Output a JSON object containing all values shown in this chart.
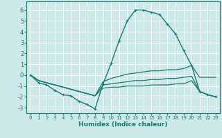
{
  "xlabel": "Humidex (Indice chaleur)",
  "xlim": [
    -0.5,
    23.5
  ],
  "ylim": [
    -3.5,
    6.8
  ],
  "yticks": [
    -3,
    -2,
    -1,
    0,
    1,
    2,
    3,
    4,
    5,
    6
  ],
  "xticks": [
    0,
    1,
    2,
    3,
    4,
    5,
    6,
    7,
    8,
    9,
    10,
    11,
    12,
    13,
    14,
    15,
    16,
    17,
    18,
    19,
    20,
    21,
    22,
    23
  ],
  "bg_color": "#cce8e8",
  "grid_color": "#ffffff",
  "line_color": "#1a7a6e",
  "series": [
    {
      "x": [
        0,
        1,
        2,
        3,
        4,
        5,
        6,
        7,
        8,
        9,
        10,
        11,
        12,
        13,
        14,
        15,
        16,
        17,
        18,
        19,
        20,
        21,
        22,
        23
      ],
      "y": [
        0.0,
        -0.7,
        -0.9,
        -1.4,
        -1.8,
        -1.9,
        -2.4,
        -2.7,
        -3.1,
        -0.8,
        1.1,
        3.2,
        5.0,
        6.0,
        6.0,
        5.8,
        5.6,
        4.7,
        3.8,
        2.3,
        0.9,
        -1.5,
        -1.8,
        -2.0
      ],
      "marker": true
    },
    {
      "x": [
        0,
        1,
        2,
        3,
        4,
        5,
        6,
        7,
        8,
        9,
        10,
        11,
        12,
        13,
        14,
        15,
        16,
        17,
        18,
        19,
        20,
        21,
        22,
        23
      ],
      "y": [
        0.0,
        -0.5,
        -0.7,
        -0.9,
        -1.1,
        -1.3,
        -1.5,
        -1.7,
        -1.9,
        -0.6,
        -0.3,
        -0.1,
        0.1,
        0.2,
        0.3,
        0.4,
        0.4,
        0.5,
        0.5,
        0.6,
        0.9,
        -0.2,
        -0.2,
        -0.2
      ],
      "marker": false
    },
    {
      "x": [
        0,
        1,
        2,
        3,
        4,
        5,
        6,
        7,
        8,
        9,
        10,
        11,
        12,
        13,
        14,
        15,
        16,
        17,
        18,
        19,
        20,
        21,
        22,
        23
      ],
      "y": [
        0.0,
        -0.5,
        -0.7,
        -0.9,
        -1.1,
        -1.3,
        -1.5,
        -1.7,
        -1.9,
        -0.9,
        -0.8,
        -0.7,
        -0.6,
        -0.5,
        -0.5,
        -0.4,
        -0.4,
        -0.3,
        -0.3,
        -0.2,
        -0.1,
        -1.5,
        -1.8,
        -2.0
      ],
      "marker": false
    },
    {
      "x": [
        0,
        1,
        2,
        3,
        4,
        5,
        6,
        7,
        8,
        9,
        10,
        11,
        12,
        13,
        14,
        15,
        16,
        17,
        18,
        19,
        20,
        21,
        22,
        23
      ],
      "y": [
        0.0,
        -0.5,
        -0.7,
        -0.9,
        -1.1,
        -1.3,
        -1.5,
        -1.7,
        -1.9,
        -1.2,
        -1.1,
        -1.1,
        -1.0,
        -1.0,
        -1.0,
        -0.9,
        -0.9,
        -0.9,
        -0.8,
        -0.8,
        -0.5,
        -1.5,
        -1.8,
        -2.0
      ],
      "marker": false
    }
  ]
}
